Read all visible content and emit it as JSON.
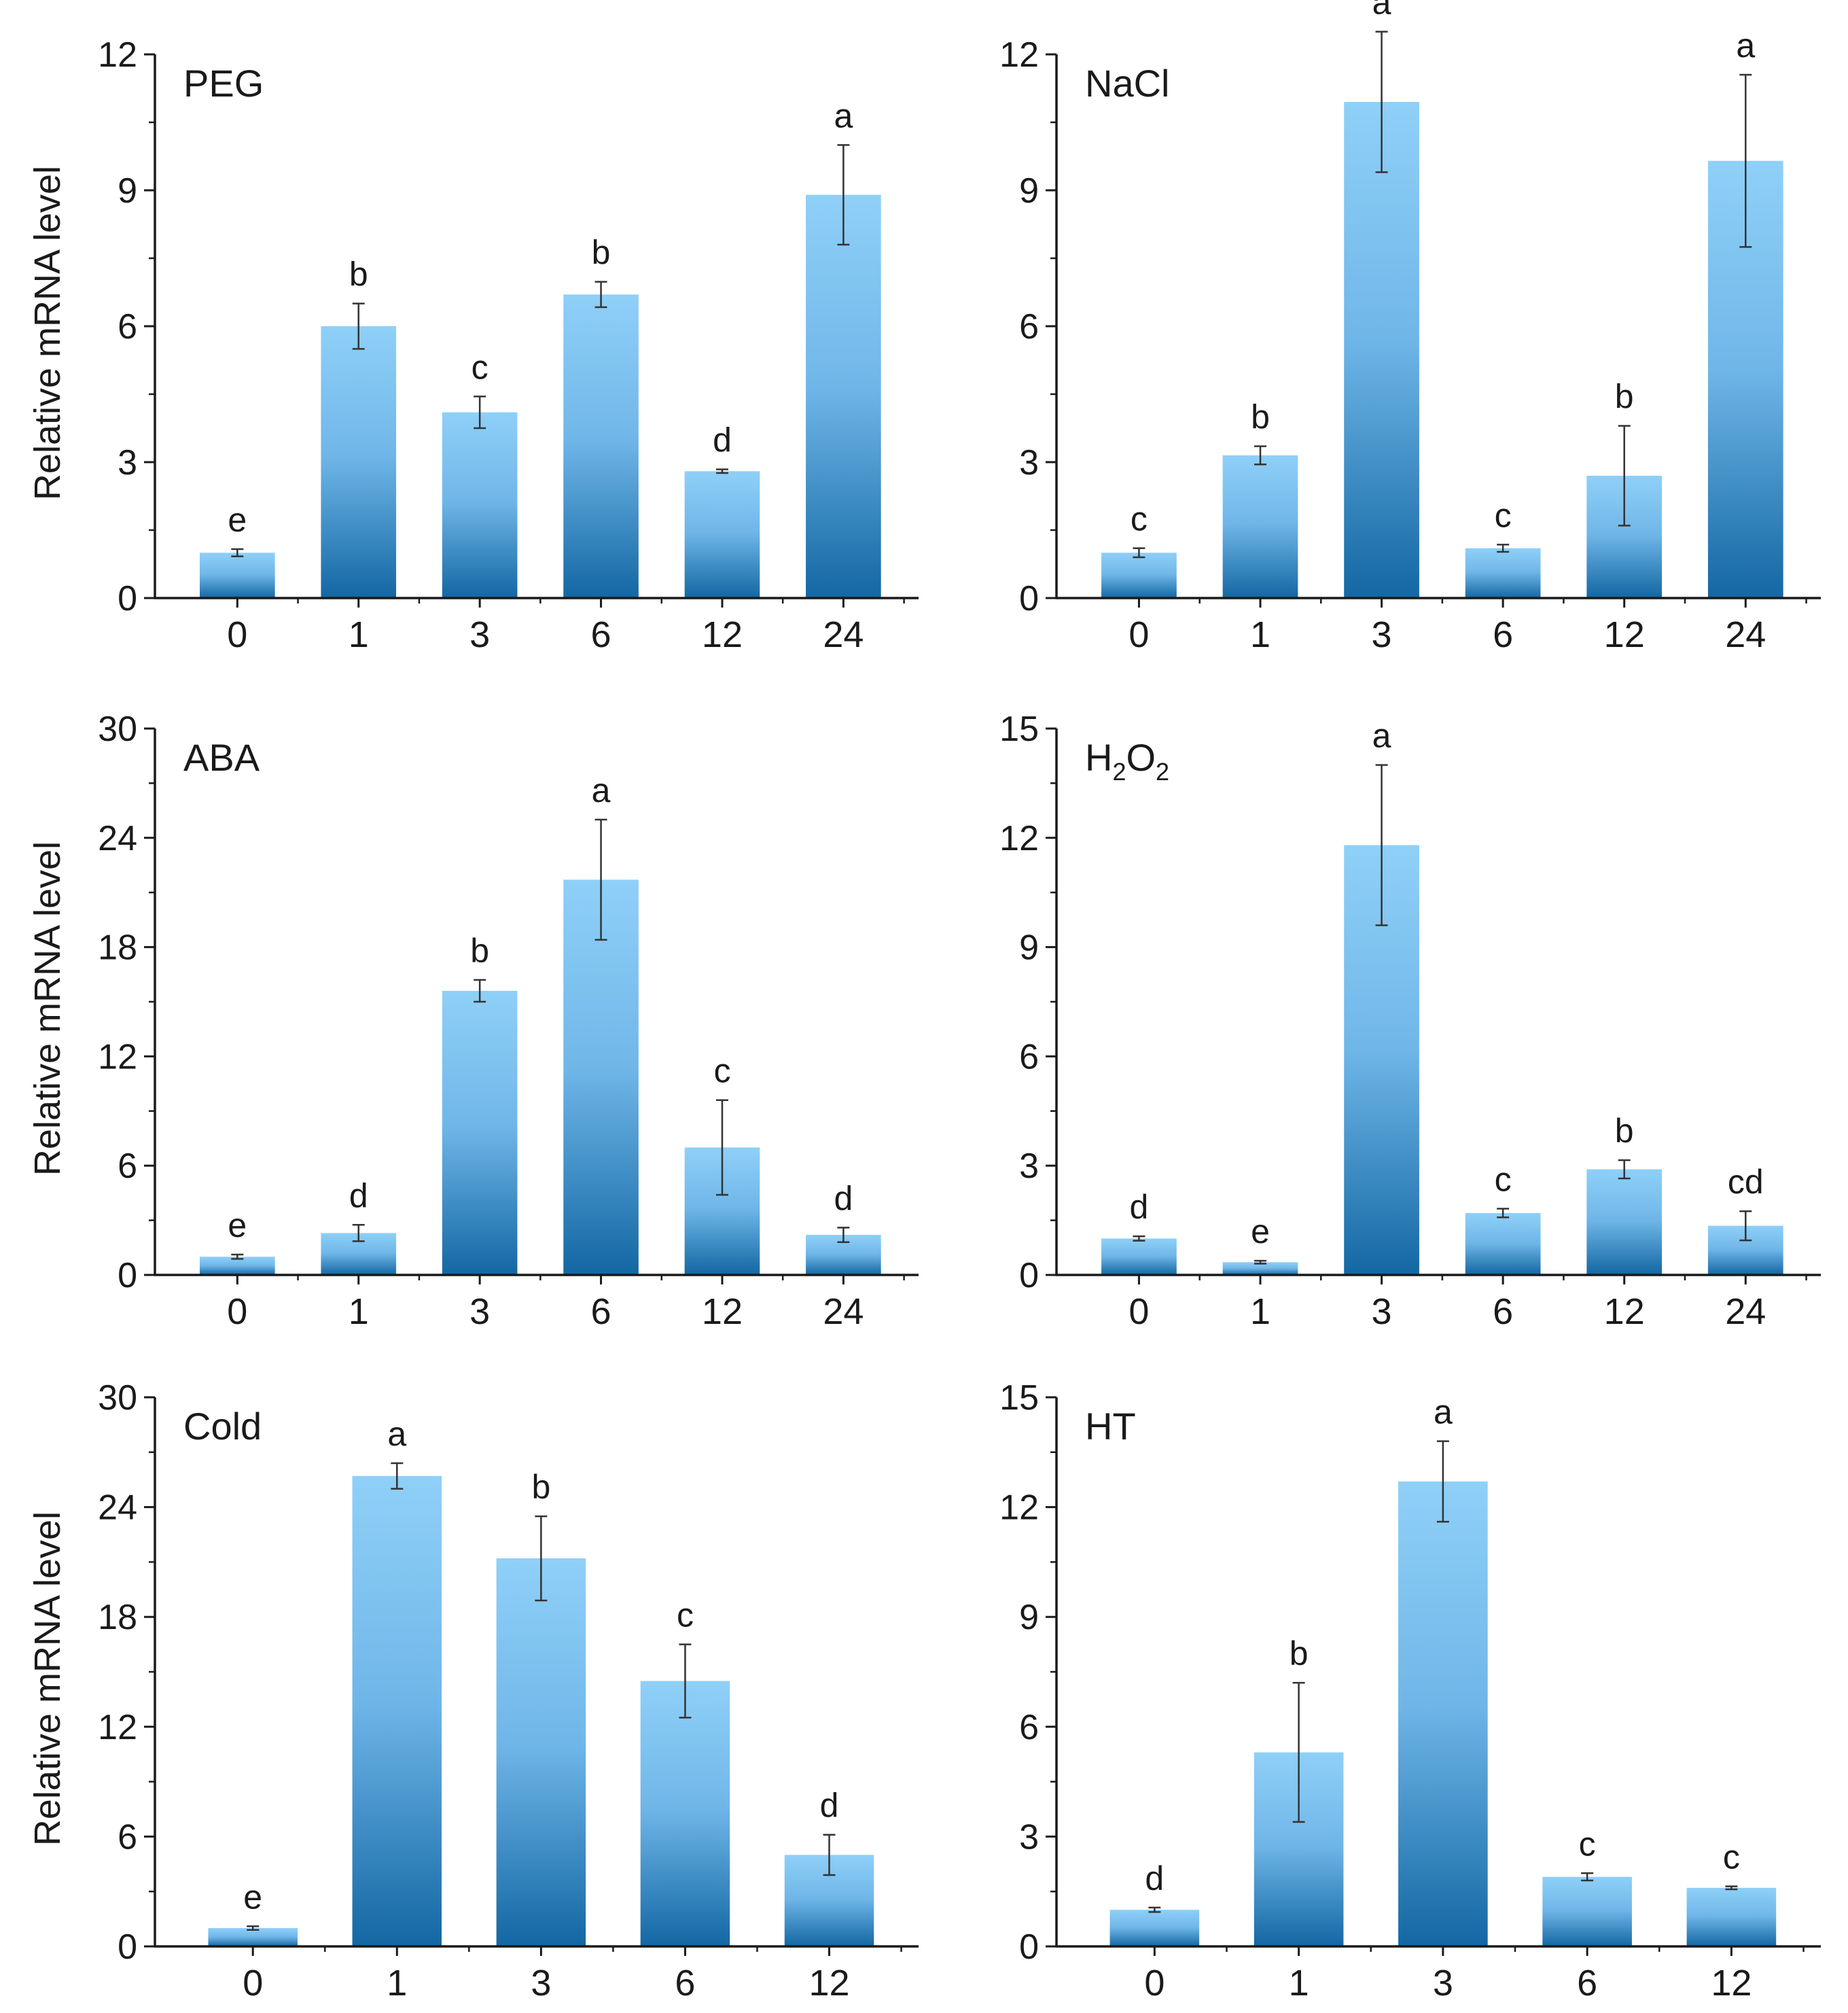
{
  "chart_data": [
    {
      "type": "bar",
      "panel_label": "PEG",
      "categories": [
        "0",
        "1",
        "3",
        "6",
        "12",
        "24"
      ],
      "values": [
        1.0,
        6.0,
        4.1,
        6.7,
        2.8,
        8.9
      ],
      "errors": [
        0.08,
        0.5,
        0.35,
        0.28,
        0.04,
        1.1
      ],
      "significance": [
        "e",
        "b",
        "c",
        "b",
        "d",
        "a"
      ],
      "ylabel": "Relative mRNA level",
      "ylim": [
        0,
        12
      ],
      "yticks": [
        "0",
        "3",
        "6",
        "9",
        "12"
      ]
    },
    {
      "type": "bar",
      "panel_label": "NaCl",
      "categories": [
        "0",
        "1",
        "3",
        "6",
        "12",
        "24"
      ],
      "values": [
        1.0,
        3.15,
        10.95,
        1.1,
        2.7,
        9.65
      ],
      "errors": [
        0.1,
        0.2,
        1.55,
        0.08,
        1.1,
        1.9
      ],
      "significance": [
        "c",
        "b",
        "a",
        "c",
        "b",
        "a"
      ],
      "ylabel": "",
      "ylim": [
        0,
        12
      ],
      "yticks": [
        "0",
        "3",
        "6",
        "9",
        "12"
      ]
    },
    {
      "type": "bar",
      "panel_label": "ABA",
      "categories": [
        "0",
        "1",
        "3",
        "6",
        "12",
        "24"
      ],
      "values": [
        1.0,
        2.3,
        15.6,
        21.7,
        7.0,
        2.2
      ],
      "errors": [
        0.12,
        0.45,
        0.6,
        3.3,
        2.6,
        0.4
      ],
      "significance": [
        "e",
        "d",
        "b",
        "a",
        "c",
        "d"
      ],
      "ylabel": "Relative mRNA level",
      "ylim": [
        0,
        30
      ],
      "yticks": [
        "0",
        "6",
        "12",
        "18",
        "24",
        "30"
      ]
    },
    {
      "type": "bar",
      "panel_label_parts": [
        "H",
        "2",
        "O",
        "2"
      ],
      "categories": [
        "0",
        "1",
        "3",
        "6",
        "12",
        "24"
      ],
      "values": [
        1.0,
        0.35,
        11.8,
        1.7,
        2.9,
        1.35
      ],
      "errors": [
        0.06,
        0.04,
        2.2,
        0.12,
        0.25,
        0.4
      ],
      "significance": [
        "d",
        "e",
        "a",
        "c",
        "b",
        "cd"
      ],
      "ylabel": "",
      "ylim": [
        0,
        15
      ],
      "yticks": [
        "0",
        "3",
        "6",
        "9",
        "12",
        "15"
      ]
    },
    {
      "type": "bar",
      "panel_label": "Cold",
      "categories": [
        "0",
        "1",
        "3",
        "6",
        "12"
      ],
      "values": [
        1.0,
        25.7,
        21.2,
        14.5,
        5.0
      ],
      "errors": [
        0.1,
        0.7,
        2.3,
        2.0,
        1.1
      ],
      "significance": [
        "e",
        "a",
        "b",
        "c",
        "d"
      ],
      "ylabel": "Relative mRNA level",
      "ylim": [
        0,
        30
      ],
      "yticks": [
        "0",
        "6",
        "12",
        "18",
        "24",
        "30"
      ]
    },
    {
      "type": "bar",
      "panel_label": "HT",
      "categories": [
        "0",
        "1",
        "3",
        "6",
        "12"
      ],
      "values": [
        1.0,
        5.3,
        12.7,
        1.9,
        1.6
      ],
      "errors": [
        0.06,
        1.9,
        1.1,
        0.1,
        0.04
      ],
      "significance": [
        "d",
        "b",
        "a",
        "c",
        "c"
      ],
      "ylabel": "",
      "ylim": [
        0,
        15
      ],
      "yticks": [
        "0",
        "3",
        "6",
        "9",
        "12",
        "15"
      ]
    }
  ],
  "colors": {
    "bar_top": "#8fd0f8",
    "bar_bottom": "#1367a3",
    "axis": "#1a1a1a",
    "error_bar": "#333333"
  }
}
